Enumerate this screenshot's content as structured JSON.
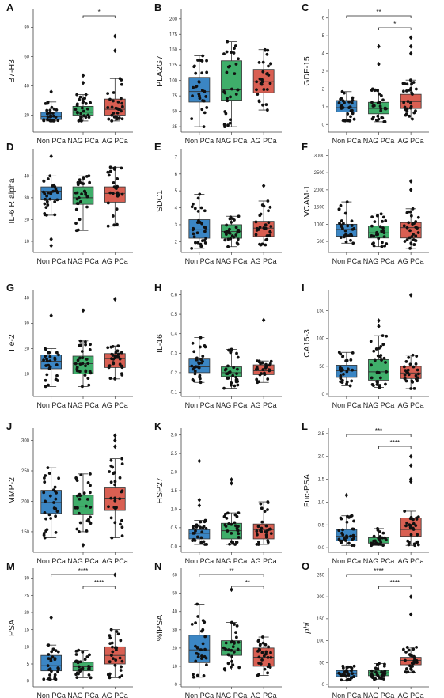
{
  "chart_data": [
    {
      "panel": "A",
      "type": "box",
      "ylabel": "B7-H3",
      "ylim": [
        10,
        90
      ],
      "yticks": [
        20,
        40,
        60,
        80
      ],
      "groups": [
        {
          "name": "Non PCa",
          "color": "#3b86c4",
          "q1": 17,
          "median": 19,
          "q3": 22,
          "wlo": 16,
          "whi": 29,
          "outliers": [
            36
          ]
        },
        {
          "name": "NAG PCa",
          "color": "#3fae6a",
          "q1": 20,
          "median": 22,
          "q3": 26,
          "wlo": 16,
          "whi": 34,
          "outliers": [
            42,
            47
          ]
        },
        {
          "name": "AG PCa",
          "color": "#d95f52",
          "q1": 20,
          "median": 24,
          "q3": 31,
          "wlo": 16,
          "whi": 45,
          "outliers": [
            64,
            74
          ]
        }
      ],
      "sig": [
        {
          "from": 1,
          "to": 2,
          "label": "*"
        }
      ]
    },
    {
      "panel": "B",
      "type": "box",
      "ylabel": "PLA2G7",
      "ylim": [
        20,
        210
      ],
      "yticks": [
        25,
        50,
        75,
        100,
        125,
        150,
        175,
        200
      ],
      "groups": [
        {
          "name": "Non PCa",
          "color": "#3b86c4",
          "q1": 65,
          "median": 82,
          "q3": 105,
          "wlo": 25,
          "whi": 140,
          "outliers": []
        },
        {
          "name": "NAG PCa",
          "color": "#3fae6a",
          "q1": 68,
          "median": 85,
          "q3": 132,
          "wlo": 25,
          "whi": 163,
          "outliers": []
        },
        {
          "name": "AG PCa",
          "color": "#d95f52",
          "q1": 80,
          "median": 98,
          "q3": 118,
          "wlo": 52,
          "whi": 150,
          "outliers": []
        }
      ],
      "sig": []
    },
    {
      "panel": "C",
      "type": "box",
      "ylabel": "GDF-15",
      "ylim": [
        -0.3,
        6.3
      ],
      "yticks": [
        0,
        1,
        2,
        3,
        4,
        5,
        6
      ],
      "groups": [
        {
          "name": "Non PCa",
          "color": "#3b86c4",
          "q1": 0.7,
          "median": 0.95,
          "q3": 1.35,
          "wlo": 0.2,
          "whi": 1.85,
          "outliers": []
        },
        {
          "name": "NAG PCa",
          "color": "#3fae6a",
          "q1": 0.6,
          "median": 0.9,
          "q3": 1.25,
          "wlo": 0.15,
          "whi": 2.0,
          "outliers": [
            3.4,
            4.4
          ]
        },
        {
          "name": "AG PCa",
          "color": "#d95f52",
          "q1": 0.9,
          "median": 1.3,
          "q3": 1.7,
          "wlo": 0.3,
          "whi": 2.5,
          "outliers": [
            4.0,
            4.4,
            4.9
          ]
        }
      ],
      "sig": [
        {
          "from": 0,
          "to": 2,
          "label": "**"
        },
        {
          "from": 1,
          "to": 2,
          "label": "*"
        }
      ]
    },
    {
      "panel": "D",
      "type": "box",
      "ylabel": "IL-6 R alpha",
      "ylim": [
        6,
        51
      ],
      "yticks": [
        10,
        20,
        30,
        40
      ],
      "groups": [
        {
          "name": "Non PCa",
          "color": "#3b86c4",
          "q1": 29,
          "median": 33,
          "q3": 35,
          "wlo": 22,
          "whi": 40,
          "outliers": [
            8,
            11,
            49
          ]
        },
        {
          "name": "NAG PCa",
          "color": "#3fae6a",
          "q1": 27,
          "median": 30,
          "q3": 35,
          "wlo": 15,
          "whi": 40,
          "outliers": []
        },
        {
          "name": "AG PCa",
          "color": "#d95f52",
          "q1": 28,
          "median": 32,
          "q3": 35,
          "wlo": 17,
          "whi": 44,
          "outliers": []
        }
      ],
      "sig": []
    },
    {
      "panel": "E",
      "type": "box",
      "ylabel": "SDC1",
      "ylim": [
        1.5,
        7.3
      ],
      "yticks": [
        2,
        3,
        4,
        5,
        6,
        7
      ],
      "groups": [
        {
          "name": "Non PCa",
          "color": "#3b86c4",
          "q1": 2.2,
          "median": 2.7,
          "q3": 3.3,
          "wlo": 1.6,
          "whi": 4.8,
          "outliers": []
        },
        {
          "name": "NAG PCa",
          "color": "#3fae6a",
          "q1": 2.2,
          "median": 2.6,
          "q3": 3.0,
          "wlo": 1.7,
          "whi": 3.5,
          "outliers": []
        },
        {
          "name": "AG PCa",
          "color": "#d95f52",
          "q1": 2.3,
          "median": 2.8,
          "q3": 3.2,
          "wlo": 1.8,
          "whi": 4.4,
          "outliers": [
            5.3
          ]
        }
      ],
      "sig": []
    },
    {
      "panel": "F",
      "type": "box",
      "ylabel": "VCAM-1",
      "ylim": [
        250,
        3100
      ],
      "yticks": [
        500,
        1000,
        1500,
        2000,
        2500,
        3000
      ],
      "groups": [
        {
          "name": "Non PCa",
          "color": "#3b86c4",
          "q1": 650,
          "median": 850,
          "q3": 1000,
          "wlo": 450,
          "whi": 1650,
          "outliers": []
        },
        {
          "name": "NAG PCa",
          "color": "#3fae6a",
          "q1": 600,
          "median": 750,
          "q3": 950,
          "wlo": 350,
          "whi": 1300,
          "outliers": []
        },
        {
          "name": "AG PCa",
          "color": "#d95f52",
          "q1": 600,
          "median": 900,
          "q3": 1050,
          "wlo": 300,
          "whi": 1450,
          "outliers": [
            2000,
            2250
          ]
        }
      ],
      "sig": []
    },
    {
      "panel": "G",
      "type": "box",
      "ylabel": "Tie-2",
      "ylim": [
        2,
        42
      ],
      "yticks": [
        10,
        20,
        30,
        40
      ],
      "groups": [
        {
          "name": "Non PCa",
          "color": "#3b86c4",
          "q1": 12,
          "median": 15,
          "q3": 17.5,
          "wlo": 5,
          "whi": 20,
          "outliers": [
            33
          ]
        },
        {
          "name": "NAG PCa",
          "color": "#3fae6a",
          "q1": 10,
          "median": 14,
          "q3": 17,
          "wlo": 5,
          "whi": 23,
          "outliers": [
            35
          ]
        },
        {
          "name": "AG PCa",
          "color": "#d95f52",
          "q1": 12.5,
          "median": 16,
          "q3": 18,
          "wlo": 8,
          "whi": 21,
          "outliers": [
            39.5
          ]
        }
      ],
      "sig": []
    },
    {
      "panel": "H",
      "type": "box",
      "ylabel": "IL-16",
      "ylim": [
        0.09,
        0.61
      ],
      "yticks": [
        0.1,
        0.2,
        0.3,
        0.4,
        0.5,
        0.6
      ],
      "groups": [
        {
          "name": "Non PCa",
          "color": "#3b86c4",
          "q1": 0.2,
          "median": 0.23,
          "q3": 0.27,
          "wlo": 0.15,
          "whi": 0.38,
          "outliers": []
        },
        {
          "name": "NAG PCa",
          "color": "#3fae6a",
          "q1": 0.18,
          "median": 0.2,
          "q3": 0.23,
          "wlo": 0.12,
          "whi": 0.32,
          "outliers": []
        },
        {
          "name": "AG PCa",
          "color": "#d95f52",
          "q1": 0.19,
          "median": 0.21,
          "q3": 0.24,
          "wlo": 0.15,
          "whi": 0.26,
          "outliers": [
            0.47
          ]
        }
      ],
      "sig": []
    },
    {
      "panel": "I",
      "type": "box",
      "ylabel": "CA15-3",
      "ylim": [
        0,
        182
      ],
      "yticks": [
        0,
        50,
        100,
        150
      ],
      "groups": [
        {
          "name": "Non PCa",
          "color": "#3b86c4",
          "q1": 30,
          "median": 42,
          "q3": 52,
          "wlo": 15,
          "whi": 75,
          "outliers": []
        },
        {
          "name": "NAG PCa",
          "color": "#3fae6a",
          "q1": 25,
          "median": 40,
          "q3": 62,
          "wlo": 12,
          "whi": 105,
          "outliers": [
            122,
            132
          ]
        },
        {
          "name": "AG PCa",
          "color": "#d95f52",
          "q1": 28,
          "median": 38,
          "q3": 50,
          "wlo": 10,
          "whi": 70,
          "outliers": [
            178
          ]
        }
      ],
      "sig": []
    },
    {
      "panel": "J",
      "type": "box",
      "ylabel": "MMP-2",
      "ylim": [
        120,
        315
      ],
      "yticks": [
        150,
        200,
        250,
        300
      ],
      "groups": [
        {
          "name": "Non PCa",
          "color": "#3b86c4",
          "q1": 180,
          "median": 198,
          "q3": 218,
          "wlo": 140,
          "whi": 255,
          "outliers": []
        },
        {
          "name": "NAG PCa",
          "color": "#3fae6a",
          "q1": 178,
          "median": 192,
          "q3": 210,
          "wlo": 150,
          "whi": 245,
          "outliers": [
            128
          ]
        },
        {
          "name": "AG PCa",
          "color": "#d95f52",
          "q1": 185,
          "median": 205,
          "q3": 222,
          "wlo": 140,
          "whi": 270,
          "outliers": [
            290,
            300,
            308
          ]
        }
      ],
      "sig": []
    },
    {
      "panel": "K",
      "type": "box",
      "ylabel": "HSP27",
      "ylim": [
        -0.1,
        3.1
      ],
      "yticks": [
        0,
        0.5,
        1,
        1.5,
        2,
        2.5,
        3
      ],
      "yticklabels": [
        "0.0",
        "0.5",
        "1.0",
        "1.5",
        "2.0",
        "2.5",
        "3.0"
      ],
      "groups": [
        {
          "name": "Non PCa",
          "color": "#3b86c4",
          "q1": 0.2,
          "median": 0.35,
          "q3": 0.45,
          "wlo": 0.05,
          "whi": 0.7,
          "outliers": [
            1.1,
            1.25,
            2.3
          ]
        },
        {
          "name": "NAG PCa",
          "color": "#3fae6a",
          "q1": 0.2,
          "median": 0.42,
          "q3": 0.62,
          "wlo": 0.05,
          "whi": 0.9,
          "outliers": [
            1.7,
            1.8
          ]
        },
        {
          "name": "AG PCa",
          "color": "#d95f52",
          "q1": 0.2,
          "median": 0.45,
          "q3": 0.6,
          "wlo": 0.05,
          "whi": 1.2,
          "outliers": []
        }
      ],
      "sig": []
    },
    {
      "panel": "L",
      "type": "box",
      "ylabel": "Fuc-PSA",
      "ylim": [
        -0.05,
        2.55
      ],
      "yticks": [
        0,
        0.5,
        1,
        1.5,
        2,
        2.5
      ],
      "yticklabels": [
        "0.0",
        "0.5",
        "1.0",
        "1.5",
        "2.0",
        "2.5"
      ],
      "groups": [
        {
          "name": "Non PCa",
          "color": "#3b86c4",
          "q1": 0.15,
          "median": 0.25,
          "q3": 0.4,
          "wlo": 0.05,
          "whi": 0.7,
          "outliers": [
            1.15
          ]
        },
        {
          "name": "NAG PCa",
          "color": "#3fae6a",
          "q1": 0.1,
          "median": 0.15,
          "q3": 0.22,
          "wlo": 0.05,
          "whi": 0.42,
          "outliers": []
        },
        {
          "name": "AG PCa",
          "color": "#d95f52",
          "q1": 0.25,
          "median": 0.4,
          "q3": 0.65,
          "wlo": 0.05,
          "whi": 0.8,
          "outliers": [
            1.45,
            1.5,
            1.8,
            2.0
          ]
        }
      ],
      "sig": [
        {
          "from": 0,
          "to": 2,
          "label": "***"
        },
        {
          "from": 1,
          "to": 2,
          "label": "****"
        }
      ]
    },
    {
      "panel": "M",
      "type": "box",
      "ylabel": "PSA",
      "ylim": [
        -1,
        32
      ],
      "yticks": [
        0,
        5,
        10,
        15,
        20,
        25,
        30
      ],
      "groups": [
        {
          "name": "Non PCa",
          "color": "#3b86c4",
          "q1": 3,
          "median": 4.5,
          "q3": 7.5,
          "wlo": 0.5,
          "whi": 10.5,
          "outliers": [
            18.5
          ]
        },
        {
          "name": "NAG PCa",
          "color": "#3fae6a",
          "q1": 3,
          "median": 4.2,
          "q3": 5.5,
          "wlo": 1,
          "whi": 9,
          "outliers": []
        },
        {
          "name": "AG PCa",
          "color": "#d95f52",
          "q1": 5,
          "median": 7.5,
          "q3": 10,
          "wlo": 1,
          "whi": 15,
          "outliers": [
            31
          ]
        }
      ],
      "sig": [
        {
          "from": 0,
          "to": 2,
          "label": "****"
        },
        {
          "from": 1,
          "to": 2,
          "label": "****"
        }
      ]
    },
    {
      "panel": "N",
      "type": "box",
      "ylabel": "%fPSA",
      "ylim": [
        0,
        62
      ],
      "yticks": [
        0,
        10,
        20,
        30,
        40,
        50,
        60
      ],
      "groups": [
        {
          "name": "Non PCa",
          "color": "#3b86c4",
          "q1": 12,
          "median": 19,
          "q3": 27,
          "wlo": 4,
          "whi": 44,
          "outliers": []
        },
        {
          "name": "NAG PCa",
          "color": "#3fae6a",
          "q1": 16,
          "median": 19,
          "q3": 24,
          "wlo": 8,
          "whi": 34,
          "outliers": [
            52
          ]
        },
        {
          "name": "AG PCa",
          "color": "#d95f52",
          "q1": 10,
          "median": 15,
          "q3": 20,
          "wlo": 5,
          "whi": 26,
          "outliers": []
        }
      ],
      "sig": [
        {
          "from": 0,
          "to": 2,
          "label": "**"
        },
        {
          "from": 1,
          "to": 2,
          "label": "**"
        }
      ]
    },
    {
      "panel": "O",
      "type": "box",
      "ylabel": "phi",
      "ylabel_italic": true,
      "ylim": [
        0,
        258
      ],
      "yticks": [
        0,
        50,
        100,
        150,
        200,
        250
      ],
      "groups": [
        {
          "name": "Non PCa",
          "color": "#3b86c4",
          "q1": 18,
          "median": 25,
          "q3": 32,
          "wlo": 10,
          "whi": 42,
          "outliers": []
        },
        {
          "name": "NAG PCa",
          "color": "#3fae6a",
          "q1": 20,
          "median": 27,
          "q3": 32,
          "wlo": 12,
          "whi": 48,
          "outliers": []
        },
        {
          "name": "AG PCa",
          "color": "#d95f52",
          "q1": 45,
          "median": 55,
          "q3": 62,
          "wlo": 28,
          "whi": 85,
          "outliers": [
            160,
            200
          ]
        }
      ],
      "sig": [
        {
          "from": 0,
          "to": 2,
          "label": "****"
        },
        {
          "from": 1,
          "to": 2,
          "label": "****"
        }
      ]
    }
  ]
}
